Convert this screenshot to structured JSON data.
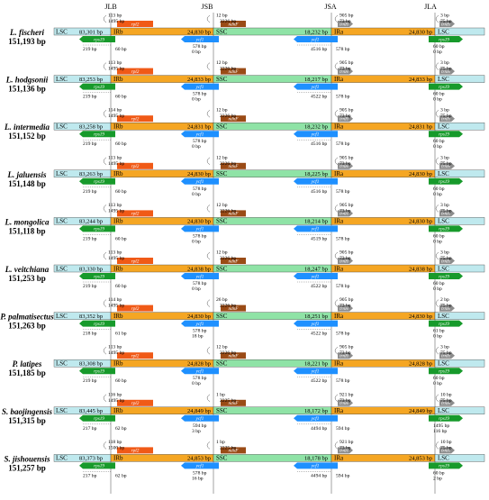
{
  "junctions": [
    "JLB",
    "JSB",
    "JSA",
    "JLA"
  ],
  "colors": {
    "lsc": "#bfe9ee",
    "ir": "#f5a623",
    "ssc": "#8fe3a6",
    "rps19": "#179a2b",
    "rpl2": "#f05a17",
    "ycf1": "#1e90ff",
    "ndhF": "#9a4b16",
    "trnH": "#8c8c8c",
    "line": "#555555"
  },
  "region_labels": {
    "lsc": "LSC",
    "irb": "IRb",
    "ssc": "SSC",
    "ira": "IRa"
  },
  "genes": {
    "rps19": "rps19",
    "rpl2": "rpl2",
    "ycf1": "ycf1",
    "ndhF": "ndhF",
    "trnH": "trnH"
  },
  "common": {
    "d_rpl2_a": "1495 bp",
    "d_ycf1_a": "578 bp",
    "d_ycf1_b": "0 bp",
    "d_ndhf": "2226 bp",
    "d_trnh": "73 bp",
    "d_jla2": "75 bp"
  },
  "species": [
    {
      "name": "L. fischeri",
      "size": "151,193 bp",
      "lsc": "83,301 bp",
      "irb": "24,830 bp",
      "ssc": "18,232 bp",
      "ira": "24,830 bp",
      "a1": "113 bp",
      "a2": "1495 bp",
      "s1": "12 bp",
      "s2": "2226 bp",
      "t1": "905 bp",
      "t2": "73 bp",
      "j1": "3 bp",
      "j2": "75 bp",
      "b1": "219 bp",
      "b2": "60 bp",
      "y1": "578 bp",
      "y2": "0 bp",
      "c1": "4516 bp",
      "c2": "578 bp",
      "e1": "60 bp",
      "e2": "0 bp"
    },
    {
      "name": "L. hodgsonii",
      "size": "151,136 bp",
      "lsc": "83,253 bp",
      "irb": "24,833 bp",
      "ssc": "18,217 bp",
      "ira": "24,833 bp",
      "a1": "113 bp",
      "a2": "1495 bp",
      "s1": "12 bp",
      "s2": "2226 bp",
      "t1": "905 bp",
      "t2": "73 bp",
      "j1": "3 bp",
      "j2": "75 bp",
      "b1": "219 bp",
      "b2": "60 bp",
      "y1": "578 bp",
      "y2": "0 bp",
      "c1": "4522 bp",
      "c2": "578 bp",
      "e1": "60 bp",
      "e2": "0 bp"
    },
    {
      "name": "L. intermedia",
      "size": "151,152 bp",
      "lsc": "83,258 bp",
      "irb": "24,831 bp",
      "ssc": "18,232 bp",
      "ira": "24,831 bp",
      "a1": "114 bp",
      "a2": "1495 bp",
      "s1": "12 bp",
      "s2": "2226 bp",
      "t1": "905 bp",
      "t2": "73 bp",
      "j1": "3 bp",
      "j2": "75 bp",
      "b1": "219 bp",
      "b2": "60 bp",
      "y1": "578 bp",
      "y2": "0 bp",
      "c1": "4516 bp",
      "c2": "578 bp",
      "e1": "60 bp",
      "e2": "0 bp"
    },
    {
      "name": "L. jaluensis",
      "size": "151,148 bp",
      "lsc": "83,263 bp",
      "irb": "24,830 bp",
      "ssc": "18,225 bp",
      "ira": "24,830 bp",
      "a1": "113 bp",
      "a2": "1495 bp",
      "s1": "12 bp",
      "s2": "2226 bp",
      "t1": "905 bp",
      "t2": "73 bp",
      "j1": "3 bp",
      "j2": "75 bp",
      "b1": "219 bp",
      "b2": "60 bp",
      "y1": "578 bp",
      "y2": "0 bp",
      "c1": "4516 bp",
      "c2": "578 bp",
      "e1": "60 bp",
      "e2": "0 bp"
    },
    {
      "name": "L. mongolica",
      "size": "151,118 bp",
      "lsc": "83,244 bp",
      "irb": "24,830 bp",
      "ssc": "18,214 bp",
      "ira": "24,830 bp",
      "a1": "113 bp",
      "a2": "1495 bp",
      "s1": "12 bp",
      "s2": "2226 bp",
      "t1": "905 bp",
      "t2": "73 bp",
      "j1": "3 bp",
      "j2": "75 bp",
      "b1": "219 bp",
      "b2": "60 bp",
      "y1": "578 bp",
      "y2": "0 bp",
      "c1": "4519 bp",
      "c2": "578 bp",
      "e1": "60 bp",
      "e2": "0 bp"
    },
    {
      "name": "L. veitchiana",
      "size": "151,253 bp",
      "lsc": "83,330 bp",
      "irb": "24,838 bp",
      "ssc": "18,247 bp",
      "ira": "24,838 bp",
      "a1": "113 bp",
      "a2": "1495 bp",
      "s1": "12 bp",
      "s2": "2226 bp",
      "t1": "905 bp",
      "t2": "73 bp",
      "j1": "3 bp",
      "j2": "75 bp",
      "b1": "219 bp",
      "b2": "60 bp",
      "y1": "578 bp",
      "y2": "0 bp",
      "c1": "4522 bp",
      "c2": "578 bp",
      "e1": "60 bp",
      "e2": "0 bp"
    },
    {
      "name": "P. palmatisectus",
      "size": "151,263 bp",
      "lsc": "83,352 bp",
      "irb": "24,830 bp",
      "ssc": "18,251 bp",
      "ira": "24,830 bp",
      "a1": "114 bp",
      "a2": "1495 bp",
      "s1": "26 bp",
      "s2": "2226 bp",
      "t1": "905 bp",
      "t2": "73 bp",
      "j1": "2 bp",
      "j2": "75 bp",
      "b1": "218 bp",
      "b2": "61 bp",
      "y1": "578 bp",
      "y2": "18 bp",
      "c1": "4522 bp",
      "c2": "578 bp",
      "e1": "61 bp",
      "e2": "0 bp"
    },
    {
      "name": "P. latipes",
      "size": "151,185 bp",
      "lsc": "83,308 bp",
      "irb": "24,828 bp",
      "ssc": "18,221 bp",
      "ira": "24,828 bp",
      "a1": "113 bp",
      "a2": "1495 bp",
      "s1": "12 bp",
      "s2": "2226 bp",
      "t1": "905 bp",
      "t2": "73 bp",
      "j1": "3 bp",
      "j2": "75 bp",
      "b1": "219 bp",
      "b2": "60 bp",
      "y1": "578 bp",
      "y2": "0 bp",
      "c1": "4522 bp",
      "c2": "578 bp",
      "e1": "60 bp",
      "e2": "0 bp"
    },
    {
      "name": "S. baojingensis",
      "size": "151,315 bp",
      "lsc": "83,445 bp",
      "irb": "24,849 bp",
      "ssc": "18,172 bp",
      "ira": "24,849 bp",
      "a1": "116 bp",
      "a2": "1495 bp",
      "s1": "1 bp",
      "s2": "2225 bp",
      "t1": "921 bp",
      "t2": "73 bp",
      "j1": "10 bp",
      "j2": "75 bp",
      "b1": "217 bp",
      "b2": "62 bp",
      "y1": "594 bp",
      "y2": "3 bp",
      "c1": "4494 bp",
      "c2": "594 bp",
      "e1": "1495 bp",
      "e2": "116 bp"
    },
    {
      "name": "S. jishouensis",
      "size": "151,257 bp",
      "lsc": "83,373 bp",
      "irb": "24,853 bp",
      "ssc": "18,178 bp",
      "ira": "24,853 bp",
      "a1": "118 bp",
      "a2": "1500 bp",
      "s1": "1 bp",
      "s2": "2225 bp",
      "t1": "921 bp",
      "t2": "73 bp",
      "j1": "10 bp",
      "j2": "75 bp",
      "b1": "217 bp",
      "b2": "62 bp",
      "y1": "578 bp",
      "y2": "16 bp",
      "c1": "4494 bp",
      "c2": "594 bp",
      "e1": "60 bp",
      "e2": "2 bp"
    }
  ]
}
